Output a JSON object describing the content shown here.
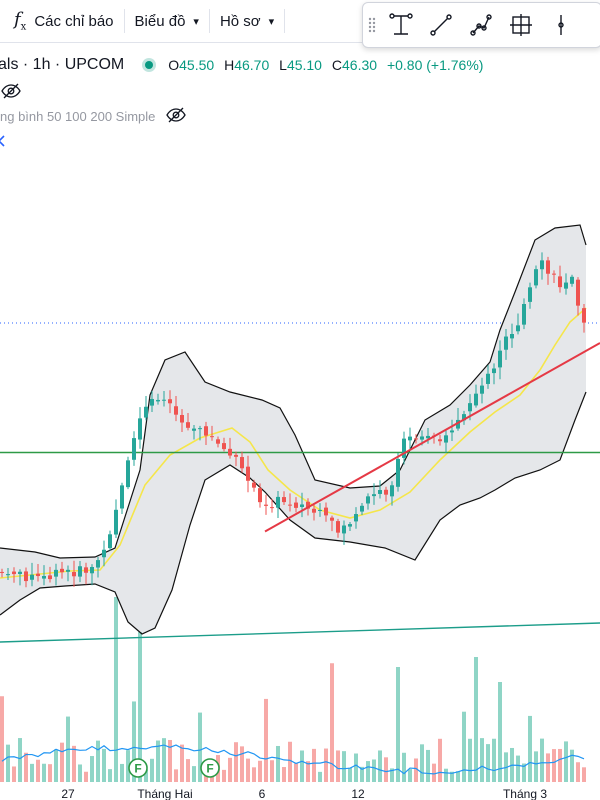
{
  "toolbar": {
    "indicators_label": "Các chỉ báo",
    "chart_label": "Biểu đồ",
    "profile_label": "Hồ sơ"
  },
  "drawing_tools": [
    "text-cursor-icon",
    "trend-line-icon",
    "multi-point-line-icon",
    "crosshair-box-icon",
    "vertical-line-icon"
  ],
  "legend": {
    "symbol": "als · 1h · UPCOM",
    "open_label": "O",
    "open": "45.50",
    "high_label": "H",
    "high": "46.70",
    "low_label": "L",
    "low": "45.10",
    "close_label": "C",
    "close": "46.30",
    "change": "+0.80 (+1.76%)",
    "ma_name": "ng bình 50 100 200 Simple",
    "more_icon": "chevron-icon"
  },
  "x_labels": [
    "27",
    "Tháng Hai",
    "6",
    "12",
    "Tháng 3"
  ],
  "colors": {
    "up": "#26a69a",
    "down": "#ef5350",
    "vol_up": "#8fd5c6",
    "vol_down": "#f7a9a7",
    "band": "#111111",
    "mid": "#f5e64a",
    "trend": "#e53945",
    "support": "#2e9a47",
    "channel": "#1c9d8a",
    "vol_ma": "#2196f3",
    "accent": "#089981"
  },
  "chart_data": {
    "type": "candlestick",
    "price_range": [
      41.2,
      48.6
    ],
    "lines": {
      "support_horizontal": 44.15,
      "trend_start": 42.57,
      "trend_end": 46.34
    },
    "events": [
      "F",
      "F"
    ]
  }
}
